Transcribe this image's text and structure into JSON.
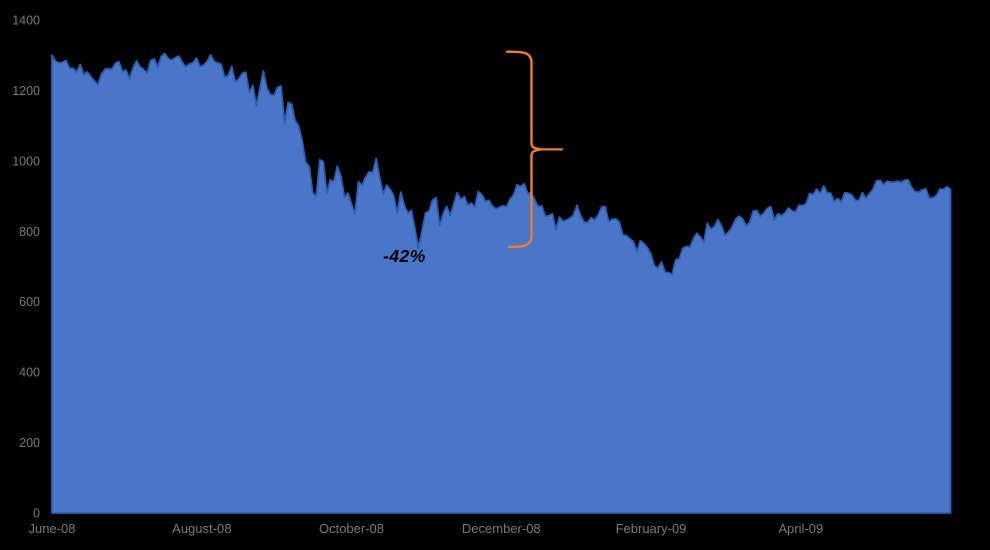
{
  "chart_data": {
    "type": "area",
    "title": "",
    "legend": false,
    "grid": false,
    "background": "#000000",
    "ylabel": "",
    "xlabel": "",
    "ylim": [
      0,
      1400
    ],
    "y_ticks": [
      0,
      200,
      400,
      600,
      800,
      1000,
      1200,
      1400
    ],
    "x_tick_labels": [
      "June-08",
      "August-08",
      "October-08",
      "December-08",
      "February-09",
      "April-09"
    ],
    "annotation": {
      "label": "-42%"
    },
    "brace": {
      "span_top_value": 1310,
      "span_bottom_value": 755,
      "percent_change_label": "-42%"
    },
    "series": [
      {
        "values": [
          1300,
          1283,
          1278,
          1280,
          1285,
          1262,
          1263,
          1252,
          1274,
          1245,
          1253,
          1239,
          1228,
          1215,
          1245,
          1260,
          1261,
          1260,
          1277,
          1282,
          1253,
          1258,
          1234,
          1263,
          1284,
          1267,
          1260,
          1249,
          1285,
          1289,
          1266,
          1296,
          1305,
          1290,
          1286,
          1293,
          1298,
          1279,
          1267,
          1275,
          1278,
          1292,
          1267,
          1272,
          1282,
          1301,
          1283,
          1278,
          1275,
          1237,
          1242,
          1268,
          1225,
          1232,
          1249,
          1252,
          1193,
          1214,
          1156,
          1207,
          1255,
          1207,
          1188,
          1186,
          1209,
          1213,
          1106,
          1166,
          1161,
          1114,
          1099,
          1057,
          996,
          985,
          910,
          899,
          1003,
          998,
          908,
          946,
          941,
          985,
          955,
          897,
          908,
          877,
          849,
          941,
          930,
          954,
          969,
          966,
          1006,
          953,
          905,
          931,
          919,
          899,
          852,
          911,
          873,
          851,
          859,
          807,
          752,
          800,
          852,
          857,
          888,
          896,
          816,
          849,
          871,
          845,
          876,
          910,
          889,
          899,
          874,
          880,
          869,
          913,
          904,
          885,
          888,
          872,
          863,
          868,
          873,
          869,
          891,
          903,
          932,
          927,
          935,
          907,
          910,
          890,
          870,
          872,
          843,
          844,
          850,
          805,
          840,
          828,
          832,
          837,
          846,
          874,
          845,
          826,
          825,
          839,
          832,
          846,
          869,
          870,
          827,
          834,
          835,
          827,
          789,
          788,
          779,
          770,
          743,
          773,
          765,
          753,
          735,
          701,
          696,
          713,
          683,
          683,
          677,
          720,
          721,
          751,
          757,
          754,
          778,
          794,
          784,
          769,
          823,
          806,
          814,
          833,
          816,
          788,
          798,
          811,
          834,
          843,
          835,
          816,
          825,
          857,
          859,
          842,
          852,
          865,
          870,
          832,
          850,
          844,
          852,
          866,
          858,
          855,
          874,
          873,
          878,
          907,
          904,
          920,
          907,
          929,
          909,
          908,
          884,
          893,
          883,
          910,
          908,
          903,
          888,
          887,
          910,
          893,
          907,
          919,
          943,
          945,
          932,
          942,
          940,
          939,
          942,
          939,
          945,
          946,
          924,
          912,
          911,
          918,
          921,
          893,
          895,
          901,
          920,
          919,
          927,
          919
        ]
      }
    ],
    "colors": {
      "area_fill": "#4a76c8",
      "area_stroke": "#2f5fae",
      "brace": "#ED7D31",
      "axis_text": "#7a7a7a",
      "annotation_text": "#000000"
    }
  }
}
